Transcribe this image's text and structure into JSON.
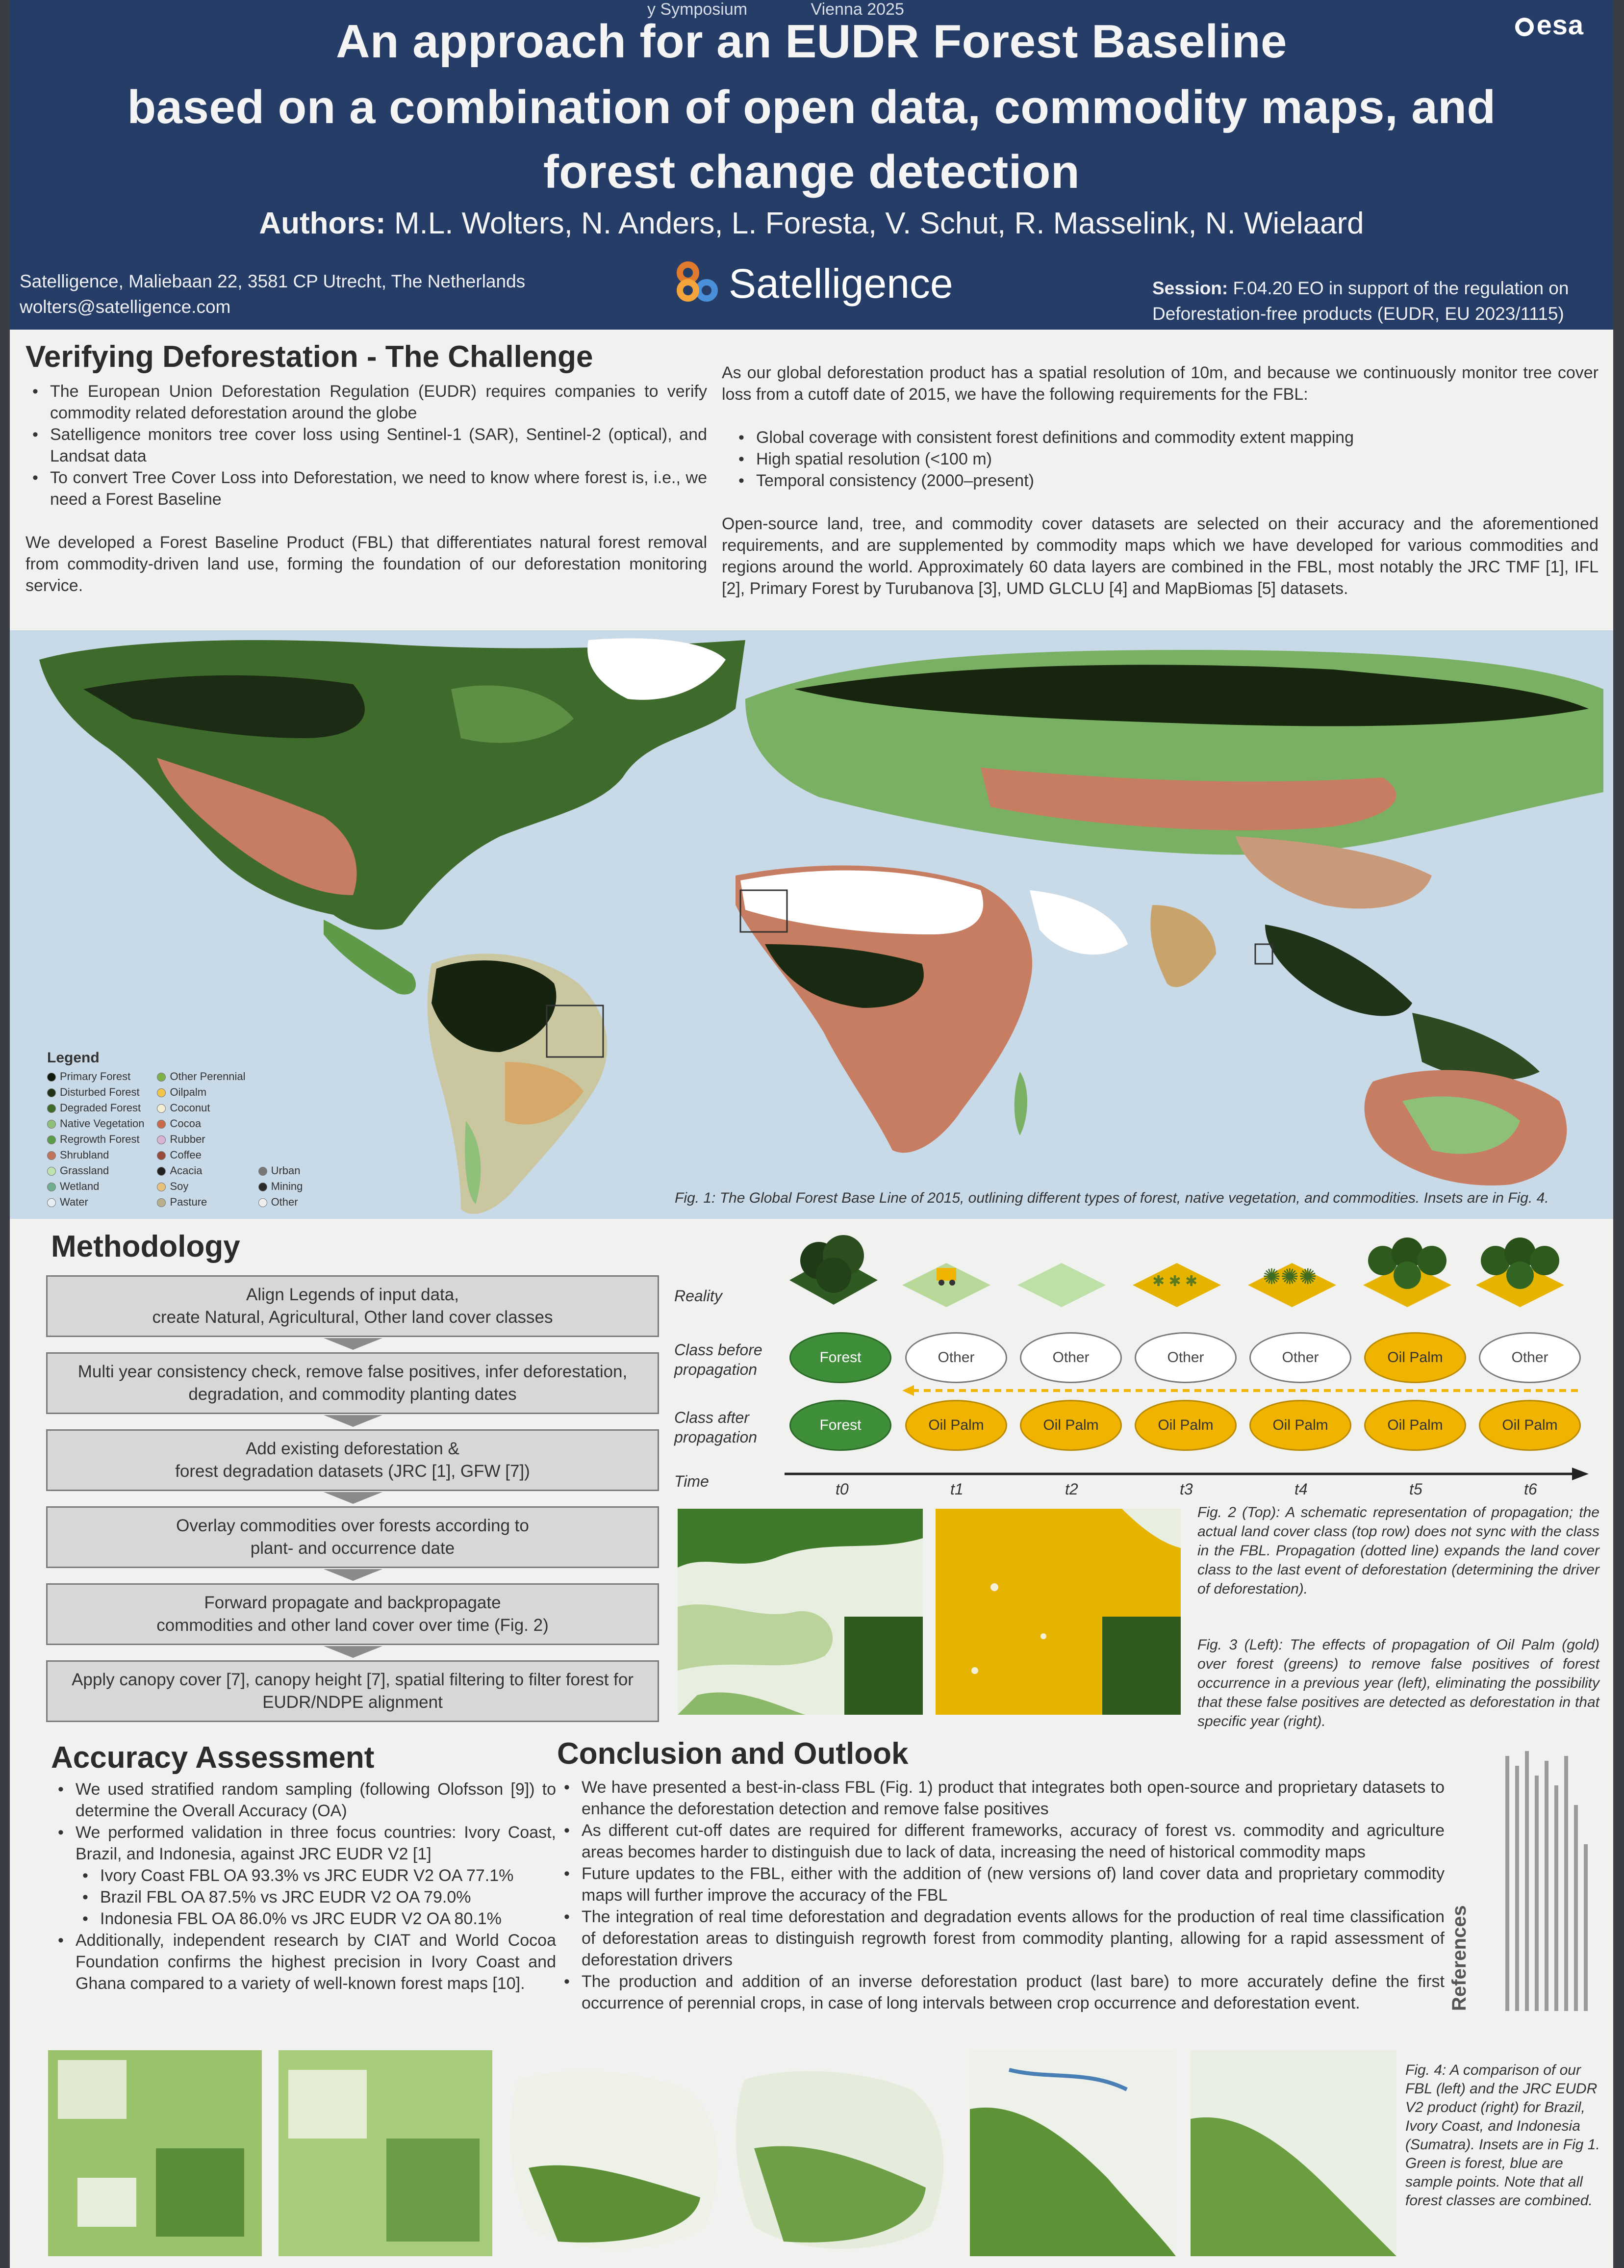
{
  "header": {
    "top_strip": [
      "y Symposium",
      "Vienna 2025"
    ],
    "esa_logo": "esa",
    "title_lines": [
      "An approach for an EUDR Forest Baseline",
      "based on a combination of open data, commodity maps, and",
      "forest change detection"
    ],
    "authors_label": "Authors:",
    "authors": "M.L. Wolters, N. Anders, L. Foresta, V. Schut, R. Masselink, N. Wielaard",
    "address_line1": "Satelligence, Maliebaan 22, 3581 CP Utrecht, The Netherlands",
    "address_line2": "wolters@satelligence.com",
    "logo_text": "Satelligence",
    "session_label": "Session:",
    "session_line1": "F.04.20 EO in support of the regulation on",
    "session_line2": "Deforestation-free products (EUDR, EU 2023/1115)"
  },
  "challenge": {
    "title": "Verifying Deforestation - The Challenge",
    "bullets": [
      "The European Union Deforestation Regulation (EUDR) requires companies to verify commodity related deforestation around the globe",
      "Satelligence monitors tree cover loss using  Sentinel-1 (SAR), Sentinel-2 (optical), and Landsat data",
      "To convert Tree Cover Loss into Deforestation, we need to know where forest is, i.e., we need a Forest Baseline"
    ],
    "paragraph": "We developed a Forest Baseline Product (FBL) that differentiates natural forest removal from commodity-driven land use, forming the foundation of our deforestation monitoring service."
  },
  "requirements": {
    "intro": "As our global deforestation product has a spatial resolution of 10m, and because we continuously monitor tree cover loss from a cutoff date of 2015, we have the following requirements for the FBL:",
    "bullets": [
      "Global coverage with consistent forest definitions and commodity extent mapping",
      "High spatial resolution (<100 m)",
      "Temporal consistency (2000–present)"
    ],
    "paragraph": "Open-source land, tree, and commodity cover datasets are selected on their accuracy and the aforementioned requirements, and are supplemented by commodity maps which we have developed for various commodities and regions around the world. Approximately 60 data layers are combined in the FBL, most notably the JRC TMF [1], IFL [2], Primary Forest by Turubanova [3], UMD GLCLU [4] and MapBiomas [5] datasets."
  },
  "legend": {
    "title": "Legend",
    "col1": [
      {
        "label": "Primary Forest",
        "color": "#101a0c"
      },
      {
        "label": "Disturbed Forest",
        "color": "#1f3318"
      },
      {
        "label": "Degraded Forest",
        "color": "#3f6a2a"
      },
      {
        "label": "Native Vegetation",
        "color": "#8ec07a"
      },
      {
        "label": "Regrowth Forest",
        "color": "#5b9c4a"
      },
      {
        "label": "Shrubland",
        "color": "#c0735a"
      },
      {
        "label": "Grassland",
        "color": "#bfe3b0"
      },
      {
        "label": "Wetland",
        "color": "#6fae8f"
      },
      {
        "label": "Water",
        "color": "#e6eef3"
      }
    ],
    "col2": [
      {
        "label": "Other Perennial",
        "color": "#7fb04a"
      },
      {
        "label": "Oilpalm",
        "color": "#f0c54a"
      },
      {
        "label": "Coconut",
        "color": "#f4efd4"
      },
      {
        "label": "Cocoa",
        "color": "#c96a4a"
      },
      {
        "label": "Rubber",
        "color": "#d9b4d4"
      },
      {
        "label": "Coffee",
        "color": "#9a4a3a"
      },
      {
        "label": "Acacia",
        "color": "#222222"
      },
      {
        "label": "Soy",
        "color": "#e6c27a"
      },
      {
        "label": "Pasture",
        "color": "#b8b08a"
      }
    ],
    "col3": [
      {
        "label": "Urban",
        "color": "#777777"
      },
      {
        "label": "Mining",
        "color": "#2a2a2a"
      },
      {
        "label": "Other",
        "color": "#eeeeee"
      }
    ]
  },
  "fig1_caption": "Fig. 1: The Global Forest Base Line of 2015, outlining different types of forest, native vegetation, and commodities. Insets are in Fig. 4.",
  "methodology": {
    "title": "Methodology",
    "steps": [
      "Align Legends of input data,\ncreate Natural, Agricultural, Other land cover classes",
      "Multi year consistency check, remove false positives, infer deforestation,\ndegradation, and commodity planting dates",
      "Add existing deforestation &\nforest degradation datasets (JRC [1], GFW [7])",
      "Overlay commodities over forests according to\nplant- and occurrence date",
      "Forward propagate and backpropagate\ncommodities and other land cover over time (Fig. 2)",
      "Apply canopy cover [7], canopy height [7], spatial filtering to filter forest for\nEUDR/NDPE alignment"
    ]
  },
  "propagation": {
    "row_reality": "Reality",
    "row_before": "Class before\npropagation",
    "row_after": "Class after\npropagation",
    "row_time": "Time",
    "before": [
      "Forest",
      "Other",
      "Other",
      "Other",
      "Other",
      "Oil Palm",
      "Other"
    ],
    "after": [
      "Forest",
      "Oil Palm",
      "Oil Palm",
      "Oil Palm",
      "Oil Palm",
      "Oil Palm",
      "Oil Palm"
    ],
    "times": [
      "t0",
      "t1",
      "t2",
      "t3",
      "t4",
      "t5",
      "t6"
    ]
  },
  "fig2_caption": "Fig. 2 (Top): A schematic representation of propagation; the actual land cover class (top row) does not sync with the class in the FBL. Propagation (dotted line) expands the land cover class to the last event of deforestation (determining the driver of deforestation).",
  "fig3_caption": "Fig. 3 (Left): The effects of propagation of Oil Palm (gold) over forest (greens) to remove false positives of forest occurrence in a previous year (left), eliminating the possibility that these false positives are detected as deforestation in that specific year (right).",
  "accuracy": {
    "title": "Accuracy Assessment",
    "items": [
      {
        "text": "We used stratified random sampling (following Olofsson [9]) to determine the Overall Accuracy (OA)",
        "sub": false
      },
      {
        "text": "We performed validation in three focus countries: Ivory Coast, Brazil, and Indonesia, against JRC EUDR V2 [1]",
        "sub": false
      },
      {
        "text": "Ivory Coast FBL OA 93.3% vs JRC EUDR V2 OA 77.1%",
        "sub": true
      },
      {
        "text": "Brazil FBL OA 87.5% vs JRC EUDR V2 OA 79.0%",
        "sub": true
      },
      {
        "text": "Indonesia FBL OA 86.0% vs JRC EUDR V2 OA 80.1%",
        "sub": true
      },
      {
        "text": "Additionally, independent research by CIAT and World Cocoa Foundation confirms the highest precision in Ivory Coast and Ghana compared to a variety of well-known forest maps [10].",
        "sub": false
      }
    ]
  },
  "conclusion": {
    "title": "Conclusion and Outlook",
    "bullets": [
      "We have presented a best-in-class FBL (Fig. 1) product that integrates both open-source and proprietary datasets to enhance the deforestation detection and remove false positives",
      "As different cut-off dates are required for different frameworks, accuracy of forest vs. commodity and agriculture areas becomes harder to distinguish due to lack of data, increasing the need of historical commodity maps",
      "Future updates to the FBL, either with the addition of (new versions of) land cover data and proprietary commodity maps will further improve the accuracy of the FBL",
      "The integration of real time deforestation and degradation events allows for the production of real time classification of deforestation areas to distinguish regrowth forest from commodity planting, allowing for a rapid assessment of deforestation drivers",
      "The production and addition of an inverse deforestation product (last bare) to more accurately define the first occurrence of perennial crops, in case of long intervals between crop occurrence and deforestation event."
    ]
  },
  "references_title": "References",
  "fig4_caption": "Fig. 4: A comparison of our FBL (left) and the JRC EUDR V2 product (right) for Brazil, Ivory Coast, and Indonesia (Sumatra). Insets are in Fig 1. Green is forest, blue are sample points. Note that all forest classes are combined."
}
